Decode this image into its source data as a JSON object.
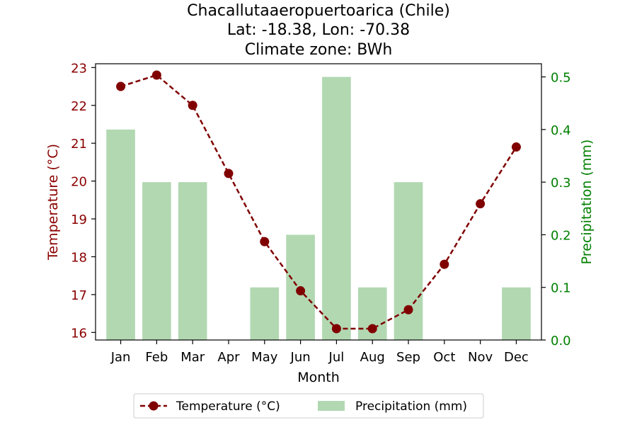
{
  "chart_data": {
    "type": "bar+line",
    "title_lines": [
      "Chacallutaaeropuertoarica (Chile)",
      "Lat: -18.38, Lon: -70.38",
      "Climate zone: BWh"
    ],
    "xlabel": "Month",
    "categories": [
      "Jan",
      "Feb",
      "Mar",
      "Apr",
      "May",
      "Jun",
      "Jul",
      "Aug",
      "Sep",
      "Oct",
      "Nov",
      "Dec"
    ],
    "temperature": {
      "name": "Temperature (°C)",
      "axis_label": "Temperature (°C)",
      "values": [
        22.5,
        22.8,
        22.0,
        20.2,
        18.4,
        17.1,
        16.1,
        16.1,
        16.6,
        17.8,
        19.4,
        20.9
      ],
      "ylim": [
        15.8,
        23.1
      ],
      "ticks": [
        16,
        17,
        18,
        19,
        20,
        21,
        22,
        23
      ],
      "color": "#800000",
      "style": "dashed line with circle markers"
    },
    "precipitation": {
      "name": "Precipitation (mm)",
      "axis_label": "Precipitation (mm)",
      "values": [
        0.4,
        0.3,
        0.3,
        0.0,
        0.1,
        0.2,
        0.5,
        0.1,
        0.3,
        0.0,
        0.0,
        0.1
      ],
      "ylim": [
        0.0,
        0.525
      ],
      "ticks": [
        "0.0",
        "0.1",
        "0.2",
        "0.3",
        "0.4",
        "0.5"
      ],
      "color": "#b2d8b2",
      "axis_color": "#008000"
    },
    "legend": {
      "placement": "bottom-center"
    },
    "grid": false
  }
}
